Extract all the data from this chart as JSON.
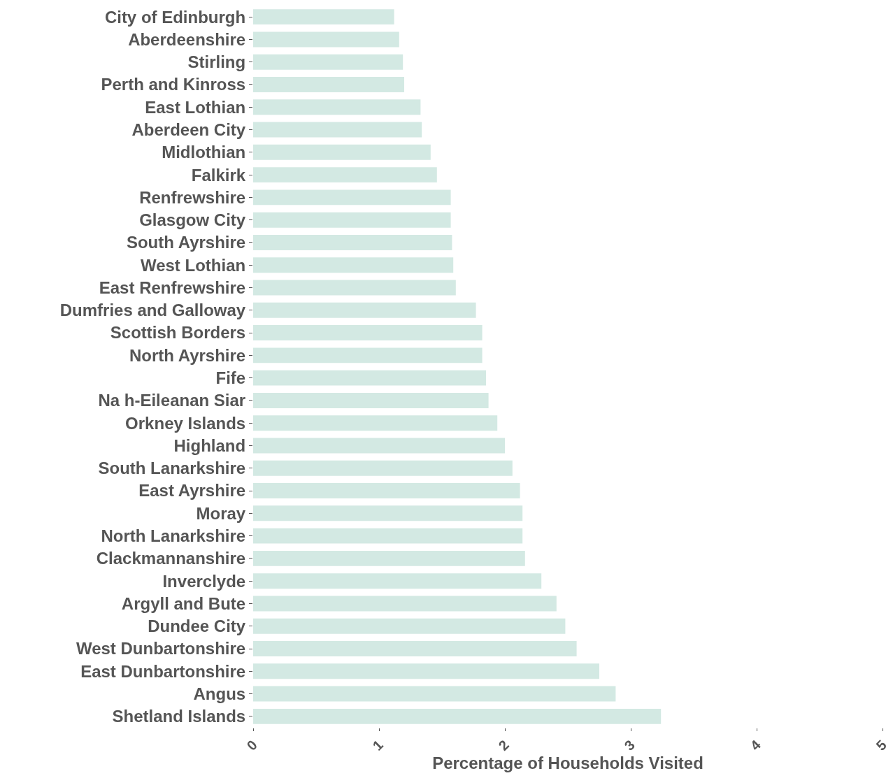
{
  "chart_data": {
    "type": "bar",
    "orientation": "horizontal",
    "xlabel": "Percentage of Households Visited",
    "categories": [
      "City of Edinburgh",
      "Aberdeenshire",
      "Stirling",
      "Perth and Kinross",
      "East Lothian",
      "Aberdeen City",
      "Midlothian",
      "Falkirk",
      "Renfrewshire",
      "Glasgow City",
      "South Ayrshire",
      "West Lothian",
      "East Renfrewshire",
      "Dumfries and Galloway",
      "Scottish Borders",
      "North Ayrshire",
      "Fife",
      "Na h-Eileanan Siar",
      "Orkney Islands",
      "Highland",
      "South Lanarkshire",
      "East Ayrshire",
      "Moray",
      "North Lanarkshire",
      "Clackmannanshire",
      "Inverclyde",
      "Argyll and Bute",
      "Dundee City",
      "West Dunbartonshire",
      "East Dunbartonshire",
      "Angus",
      "Shetland Islands"
    ],
    "values": [
      1.12,
      1.16,
      1.19,
      1.2,
      1.33,
      1.34,
      1.41,
      1.46,
      1.57,
      1.57,
      1.58,
      1.59,
      1.61,
      1.77,
      1.82,
      1.82,
      1.85,
      1.87,
      1.94,
      2.0,
      2.06,
      2.12,
      2.14,
      2.14,
      2.16,
      2.29,
      2.41,
      2.48,
      2.57,
      2.75,
      2.88,
      3.24
    ],
    "color": "#d3e9e3",
    "xlim": [
      0,
      5
    ],
    "xticks": [
      0,
      1,
      2,
      3,
      4,
      5
    ],
    "grid": false
  }
}
